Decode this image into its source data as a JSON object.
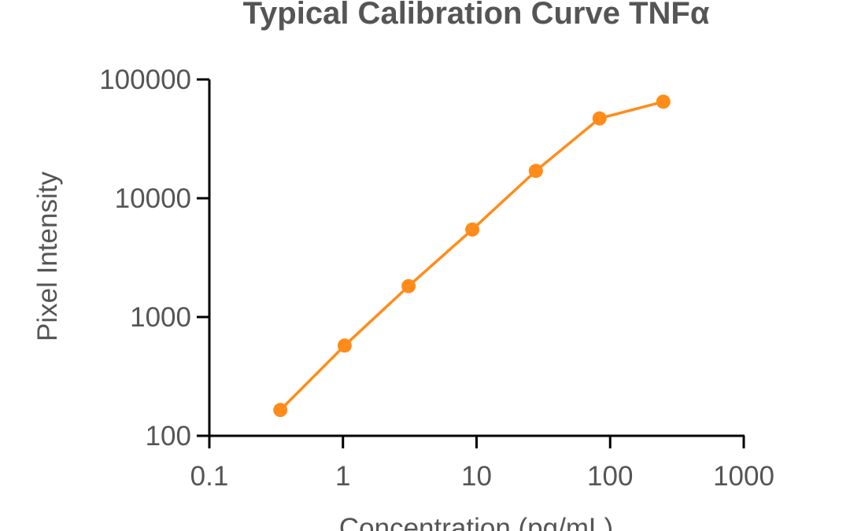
{
  "chart_data": {
    "type": "line",
    "title": "Typical Calibration Curve TNFα",
    "xlabel": "Concentration (pg/mL)",
    "ylabel": "Pixel Intensity",
    "x_scale": "log",
    "y_scale": "log",
    "xlim": [
      0.1,
      1000
    ],
    "ylim": [
      100,
      100000
    ],
    "x_ticks": [
      0.1,
      1,
      10,
      100,
      1000
    ],
    "x_tick_labels": [
      "0.1",
      "1",
      "10",
      "100",
      "1000"
    ],
    "y_ticks": [
      100,
      1000,
      10000,
      100000
    ],
    "y_tick_labels": [
      "100",
      "1000",
      "10000",
      "100000"
    ],
    "grid": false,
    "legend": "none",
    "series": [
      {
        "color": "#ff8c1a",
        "x": [
          0.34,
          1.03,
          3.1,
          9.3,
          27.8,
          83.3,
          250
        ],
        "y": [
          165,
          575,
          1820,
          5450,
          17000,
          47000,
          65000
        ]
      }
    ]
  }
}
